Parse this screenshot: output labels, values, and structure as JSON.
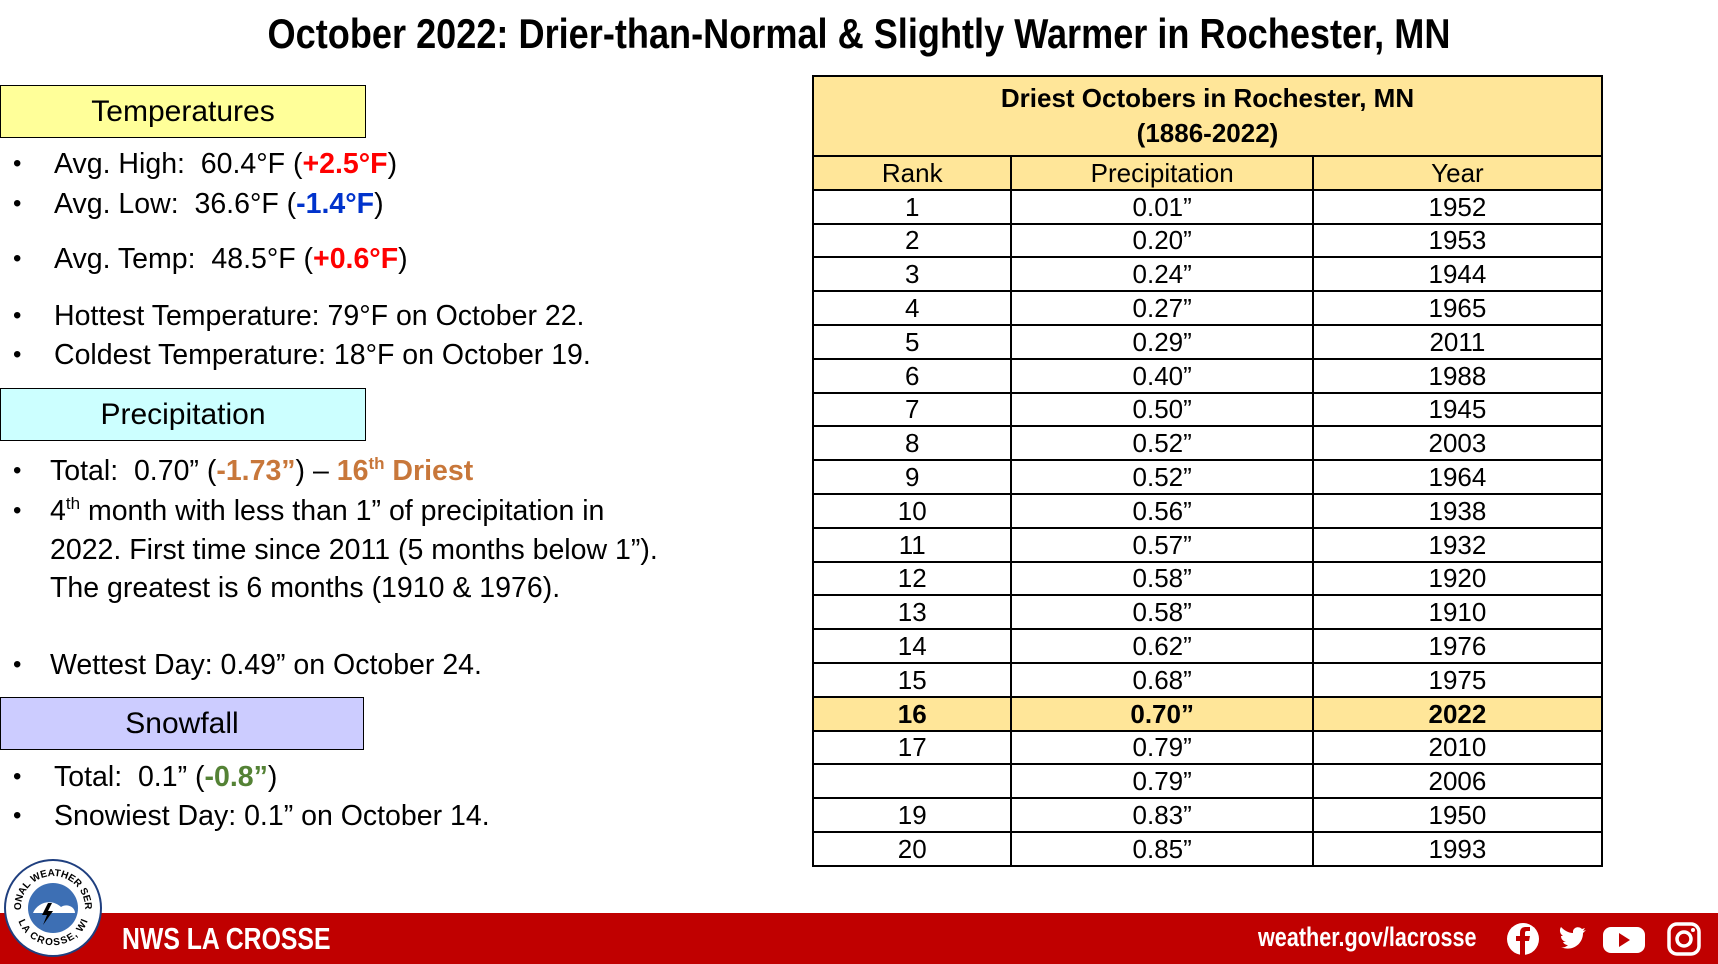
{
  "title": "October 2022: Drier-than-Normal & Slightly Warmer in Rochester, MN",
  "sections": [
    {
      "heading": "Temperatures",
      "color": "#ffff99",
      "bullets": [
        {
          "segments": [
            {
              "text": "Avg. High:  60.4°F ("
            },
            {
              "text": "+2.5°F",
              "color": "#ff0000",
              "bold": true
            },
            {
              "text": ")"
            }
          ]
        },
        {
          "segments": [
            {
              "text": "Avg. Low:  36.6°F ("
            },
            {
              "text": "-1.4°F",
              "color": "#0033cc",
              "bold": true
            },
            {
              "text": ")"
            }
          ]
        },
        {
          "segments": [
            {
              "text": "Avg. Temp:  48.5°F ("
            },
            {
              "text": "+0.6°F",
              "color": "#ff0000",
              "bold": true
            },
            {
              "text": ")"
            }
          ]
        },
        {
          "segments": [
            {
              "text": "Hottest Temperature: 79°F on October 22."
            }
          ]
        },
        {
          "segments": [
            {
              "text": "Coldest Temperature: 18°F on October 19."
            }
          ]
        }
      ]
    },
    {
      "heading": "Precipitation",
      "color": "#ccffff",
      "bullets": [
        {
          "segments": [
            {
              "text": "Total:  0.70” ("
            },
            {
              "text": "-1.73”",
              "color": "#c8773a",
              "bold": true
            },
            {
              "text": ") – "
            },
            {
              "text": "16",
              "color": "#c8773a",
              "bold": true
            },
            {
              "text": "th",
              "color": "#c8773a",
              "bold": true,
              "sup": true
            },
            {
              "text": " Driest",
              "color": "#c8773a",
              "bold": true
            }
          ]
        },
        {
          "segments": [
            {
              "text": "4"
            },
            {
              "text": "th",
              "sup": true
            },
            {
              "text": " month with less than 1” of precipitation in 2022. First time since 2011 (5 months below 1”). The greatest is 6 months (1910 & 1976)."
            }
          ]
        },
        {
          "segments": [
            {
              "text": "Wettest Day: 0.49” on October 24."
            }
          ]
        }
      ]
    },
    {
      "heading": "Snowfall",
      "color": "#ccccff",
      "bullets": [
        {
          "segments": [
            {
              "text": "Total:  0.1” ("
            },
            {
              "text": "-0.8”",
              "color": "#548235",
              "bold": true
            },
            {
              "text": ")"
            }
          ]
        },
        {
          "segments": [
            {
              "text": "Snowiest Day: 0.1” on October 14."
            }
          ]
        }
      ]
    }
  ],
  "table": {
    "title": "Driest Octobers in Rochester, MN",
    "subtitle": "(1886-2022)",
    "header_color": "#ffe699",
    "columns": [
      "Rank",
      "Precipitation",
      "Year"
    ],
    "rows": [
      {
        "cells": [
          1,
          "0.01”",
          1952
        ]
      },
      {
        "cells": [
          2,
          "0.20”",
          1953
        ]
      },
      {
        "cells": [
          3,
          "0.24”",
          1944
        ]
      },
      {
        "cells": [
          4,
          "0.27”",
          1965
        ]
      },
      {
        "cells": [
          5,
          "0.29”",
          2011
        ]
      },
      {
        "cells": [
          6,
          "0.40”",
          1988
        ]
      },
      {
        "cells": [
          7,
          "0.50”",
          1945
        ]
      },
      {
        "cells": [
          8,
          "0.52”",
          2003
        ]
      },
      {
        "cells": [
          9,
          "0.52”",
          1964
        ]
      },
      {
        "cells": [
          10,
          "0.56”",
          1938
        ]
      },
      {
        "cells": [
          11,
          "0.57”",
          1932
        ]
      },
      {
        "cells": [
          12,
          "0.58”",
          1920
        ]
      },
      {
        "cells": [
          13,
          "0.58”",
          1910
        ]
      },
      {
        "cells": [
          14,
          "0.62”",
          1976
        ]
      },
      {
        "cells": [
          15,
          "0.68”",
          1975
        ]
      },
      {
        "cells": [
          16,
          "0.70”",
          2022
        ],
        "highlight": true
      },
      {
        "cells": [
          17,
          "0.79”",
          2010
        ]
      },
      {
        "cells": [
          null,
          "0.79”",
          2006
        ]
      },
      {
        "cells": [
          19,
          "0.83”",
          1950
        ]
      },
      {
        "cells": [
          20,
          "0.85”",
          1993
        ]
      }
    ]
  },
  "footer": {
    "office": "NWS LA CROSSE",
    "url": "weather.gov/lacrosse",
    "logo_top": "NATIONAL WEATHER SERVICE",
    "logo_bottom": "LA CROSSE, WI",
    "color": "#c00000"
  }
}
